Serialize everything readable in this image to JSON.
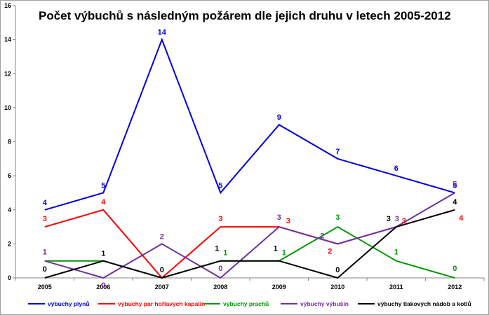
{
  "chart_data": {
    "type": "line",
    "title": "Počet výbuchů s následným požárem dle jejich druhu v letech 2005-2012",
    "xlabel": "",
    "ylabel": "",
    "categories": [
      "2005",
      "2006",
      "2007",
      "2008",
      "2009",
      "2010",
      "2011",
      "2012"
    ],
    "ylim": [
      0,
      16
    ],
    "yticks": [
      "0",
      "2",
      "4",
      "6",
      "8",
      "10",
      "12",
      "14",
      "16"
    ],
    "grid": false,
    "legend_position": "bottom",
    "series": [
      {
        "name": "výbuchy plynů",
        "color": "#0000e0",
        "values": [
          4,
          5,
          14,
          5,
          9,
          7,
          6,
          5
        ],
        "labels": [
          "4",
          "5",
          "14",
          "5",
          "9",
          "7",
          "6",
          "5"
        ]
      },
      {
        "name": "výbuchy par hořlavých kapalin",
        "color": "#ff0000",
        "values": [
          3,
          4,
          0,
          3,
          3,
          2,
          3,
          4
        ],
        "labels": [
          "3",
          "4",
          "",
          "3",
          "3",
          "2",
          "3",
          "4"
        ]
      },
      {
        "name": "výbuchy prachů",
        "color": "#009900",
        "values": [
          1,
          1,
          0,
          1,
          1,
          3,
          1,
          0
        ],
        "labels": [
          "",
          "",
          "",
          "1",
          "1",
          "3",
          "1",
          "0"
        ]
      },
      {
        "name": "výbuchy výbušin",
        "color": "#7030a0",
        "values": [
          1,
          0,
          2,
          0,
          3,
          2,
          3,
          5
        ],
        "labels": [
          "1",
          "0",
          "2",
          "0",
          "3",
          "2",
          "3",
          "5"
        ]
      },
      {
        "name": "výbuchy tlakových nádob a kotlů",
        "color": "#000000",
        "values": [
          0,
          1,
          0,
          1,
          1,
          0,
          3,
          4
        ],
        "labels": [
          "0",
          "1",
          "0",
          "1",
          "1",
          "0",
          "3",
          "4"
        ]
      }
    ]
  }
}
